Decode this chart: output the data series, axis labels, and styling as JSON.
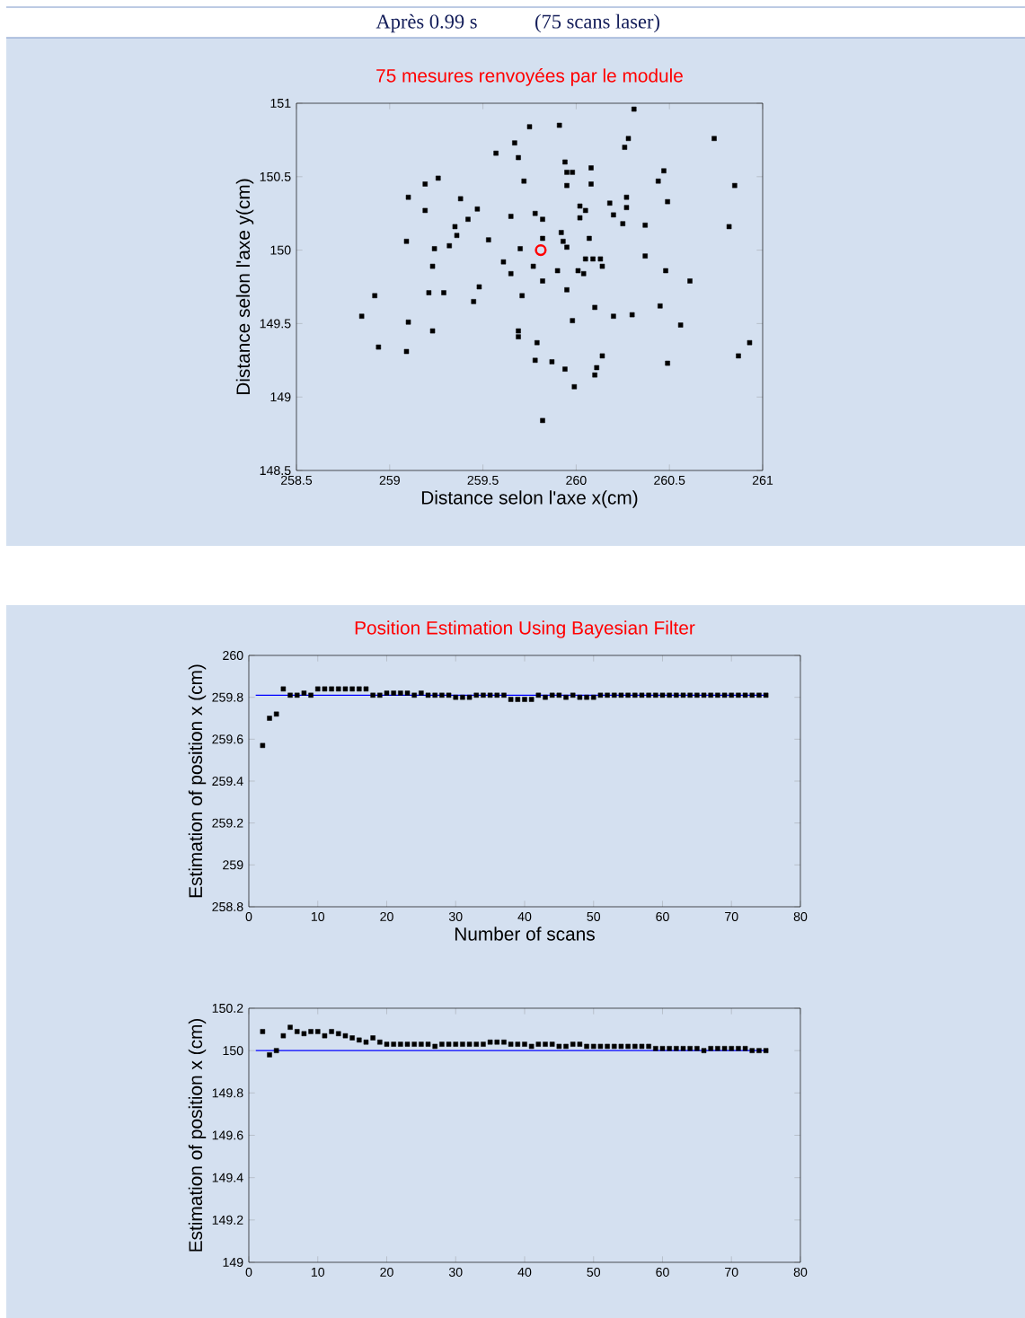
{
  "chart_data": [
    {
      "type": "scatter",
      "title": "75 mesures renvoyées par le module",
      "annotations": [
        "Après 0.99 s",
        "(75 scans laser)"
      ],
      "xlabel": "Distance selon l'axe x(cm)",
      "ylabel": "Distance selon l'axe y(cm)",
      "xlim": [
        258.5,
        261
      ],
      "ylim": [
        148.5,
        151
      ],
      "xticks": [
        258.5,
        259,
        259.5,
        260,
        260.5,
        261
      ],
      "yticks": [
        148.5,
        149,
        149.5,
        150,
        150.5,
        151
      ],
      "series": [
        {
          "color": "#000000",
          "marker": "square",
          "x": [
            259.75,
            259.67,
            259.57,
            259.69,
            259.72,
            259.26,
            259.19,
            259.1,
            259.38,
            259.19,
            259.47,
            259.42,
            259.65,
            259.35,
            259.36,
            259.09,
            259.53,
            259.24,
            259.32,
            259.7,
            259.23,
            259.61,
            259.65,
            258.92,
            259.21,
            259.29,
            259.48,
            259.45,
            259.71,
            258.85,
            259.1,
            259.23,
            259.69,
            259.69,
            258.94,
            259.09,
            260.31,
            259.91,
            260.28,
            260.74,
            260.26,
            259.94,
            260.08,
            259.95,
            259.98,
            260.47,
            260.44,
            259.95,
            260.08,
            260.85,
            260.27,
            260.18,
            260.49,
            260.27,
            260.02,
            260.05,
            259.78,
            260.02,
            259.82,
            260.2,
            260.25,
            260.37,
            260.82,
            259.92,
            259.82,
            259.93,
            260.07,
            259.95,
            260.37,
            260.05,
            260.09,
            260.13,
            260.14,
            259.77,
            259.9,
            260.01,
            260.04,
            260.48,
            259.82,
            260.61,
            259.95,
            260.1,
            260.45,
            259.98,
            260.2,
            260.3,
            260.56,
            259.79,
            260.93,
            260.87,
            260.14,
            259.78,
            259.87,
            260.11,
            260.49,
            259.94,
            260.1,
            259.99,
            259.82
          ],
          "values": [
            150.84,
            150.73,
            150.66,
            150.63,
            150.47,
            150.49,
            150.45,
            150.36,
            150.35,
            150.27,
            150.28,
            150.21,
            150.23,
            150.16,
            150.1,
            150.06,
            150.07,
            150.01,
            150.03,
            150.01,
            149.89,
            149.92,
            149.84,
            149.69,
            149.71,
            149.71,
            149.75,
            149.65,
            149.69,
            149.55,
            149.51,
            149.45,
            149.45,
            149.41,
            149.34,
            149.31,
            150.96,
            150.85,
            150.76,
            150.76,
            150.7,
            150.6,
            150.56,
            150.53,
            150.53,
            150.54,
            150.47,
            150.44,
            150.45,
            150.44,
            150.36,
            150.32,
            150.33,
            150.29,
            150.3,
            150.27,
            150.25,
            150.22,
            150.21,
            150.24,
            150.18,
            150.17,
            150.16,
            150.12,
            150.08,
            150.06,
            150.08,
            150.02,
            149.96,
            149.94,
            149.94,
            149.94,
            149.89,
            149.89,
            149.86,
            149.86,
            149.84,
            149.86,
            149.79,
            149.79,
            149.73,
            149.61,
            149.62,
            149.52,
            149.55,
            149.56,
            149.49,
            149.37,
            149.37,
            149.28,
            149.28,
            149.25,
            149.24,
            149.2,
            149.23,
            149.19,
            149.15,
            149.07,
            148.84
          ]
        },
        {
          "color": "#ff0000",
          "marker": "circle",
          "x": [
            259.81
          ],
          "values": [
            150.0
          ]
        }
      ]
    },
    {
      "type": "scatter",
      "title": "Position Estimation Using Bayesian Filter",
      "xlabel": "Number of scans",
      "ylabel": "Estimation of position x (cm)",
      "xlim": [
        0,
        80
      ],
      "ylim": [
        258.8,
        260
      ],
      "xticks": [
        0,
        10,
        20,
        30,
        40,
        50,
        60,
        70,
        80
      ],
      "yticks": [
        258.8,
        259,
        259.2,
        259.4,
        259.6,
        259.8,
        260
      ],
      "series": [
        {
          "color": "#000000",
          "marker": "square",
          "x": [
            2,
            3,
            4,
            5,
            6,
            7,
            8,
            9,
            10,
            11,
            12,
            13,
            14,
            15,
            16,
            17,
            18,
            19,
            20,
            21,
            22,
            23,
            24,
            25,
            26,
            27,
            28,
            29,
            30,
            31,
            32,
            33,
            34,
            35,
            36,
            37,
            38,
            39,
            40,
            41,
            42,
            43,
            44,
            45,
            46,
            47,
            48,
            49,
            50,
            51,
            52,
            53,
            54,
            55,
            56,
            57,
            58,
            59,
            60,
            61,
            62,
            63,
            64,
            65,
            66,
            67,
            68,
            69,
            70,
            71,
            72,
            73,
            74,
            75
          ],
          "values": [
            259.57,
            259.7,
            259.72,
            259.84,
            259.81,
            259.81,
            259.82,
            259.81,
            259.84,
            259.84,
            259.84,
            259.84,
            259.84,
            259.84,
            259.84,
            259.84,
            259.81,
            259.81,
            259.82,
            259.82,
            259.82,
            259.82,
            259.81,
            259.82,
            259.81,
            259.81,
            259.81,
            259.81,
            259.8,
            259.8,
            259.8,
            259.81,
            259.81,
            259.81,
            259.81,
            259.81,
            259.79,
            259.79,
            259.79,
            259.79,
            259.81,
            259.8,
            259.81,
            259.81,
            259.8,
            259.81,
            259.8,
            259.8,
            259.8,
            259.81,
            259.81,
            259.81,
            259.81,
            259.81,
            259.81,
            259.81,
            259.81,
            259.81,
            259.81,
            259.81,
            259.81,
            259.81,
            259.81,
            259.81,
            259.81,
            259.81,
            259.81,
            259.81,
            259.81,
            259.81,
            259.81,
            259.81,
            259.81,
            259.81
          ]
        },
        {
          "type": "line",
          "color": "#0000ff",
          "marker": "none",
          "x": [
            1,
            75
          ],
          "values": [
            259.81,
            259.81
          ]
        }
      ]
    },
    {
      "type": "scatter",
      "ylabel": "Estimation of position x (cm)",
      "xlim": [
        0,
        80
      ],
      "ylim": [
        149,
        150.2
      ],
      "xticks": [
        0,
        10,
        20,
        30,
        40,
        50,
        60,
        70,
        80
      ],
      "yticks": [
        149,
        149.2,
        149.4,
        149.6,
        149.8,
        150,
        150.2
      ],
      "series": [
        {
          "color": "#000000",
          "marker": "square",
          "x": [
            2,
            3,
            4,
            5,
            6,
            7,
            8,
            9,
            10,
            11,
            12,
            13,
            14,
            15,
            16,
            17,
            18,
            19,
            20,
            21,
            22,
            23,
            24,
            25,
            26,
            27,
            28,
            29,
            30,
            31,
            32,
            33,
            34,
            35,
            36,
            37,
            38,
            39,
            40,
            41,
            42,
            43,
            44,
            45,
            46,
            47,
            48,
            49,
            50,
            51,
            52,
            53,
            54,
            55,
            56,
            57,
            58,
            59,
            60,
            61,
            62,
            63,
            64,
            65,
            66,
            67,
            68,
            69,
            70,
            71,
            72,
            73,
            74,
            75
          ],
          "values": [
            150.09,
            149.98,
            150.0,
            150.07,
            150.11,
            150.09,
            150.08,
            150.09,
            150.09,
            150.07,
            150.09,
            150.08,
            150.07,
            150.06,
            150.05,
            150.04,
            150.06,
            150.04,
            150.03,
            150.03,
            150.03,
            150.03,
            150.03,
            150.03,
            150.03,
            150.02,
            150.03,
            150.03,
            150.03,
            150.03,
            150.03,
            150.03,
            150.03,
            150.04,
            150.04,
            150.04,
            150.03,
            150.03,
            150.03,
            150.02,
            150.03,
            150.03,
            150.03,
            150.02,
            150.02,
            150.03,
            150.03,
            150.02,
            150.02,
            150.02,
            150.02,
            150.02,
            150.02,
            150.02,
            150.02,
            150.02,
            150.02,
            150.01,
            150.01,
            150.01,
            150.01,
            150.01,
            150.01,
            150.01,
            150.0,
            150.01,
            150.01,
            150.01,
            150.01,
            150.01,
            150.01,
            150.0,
            150.0,
            150.0
          ]
        },
        {
          "type": "line",
          "color": "#0000ff",
          "marker": "none",
          "x": [
            1,
            75
          ],
          "values": [
            150.0,
            150.0
          ]
        }
      ]
    }
  ]
}
